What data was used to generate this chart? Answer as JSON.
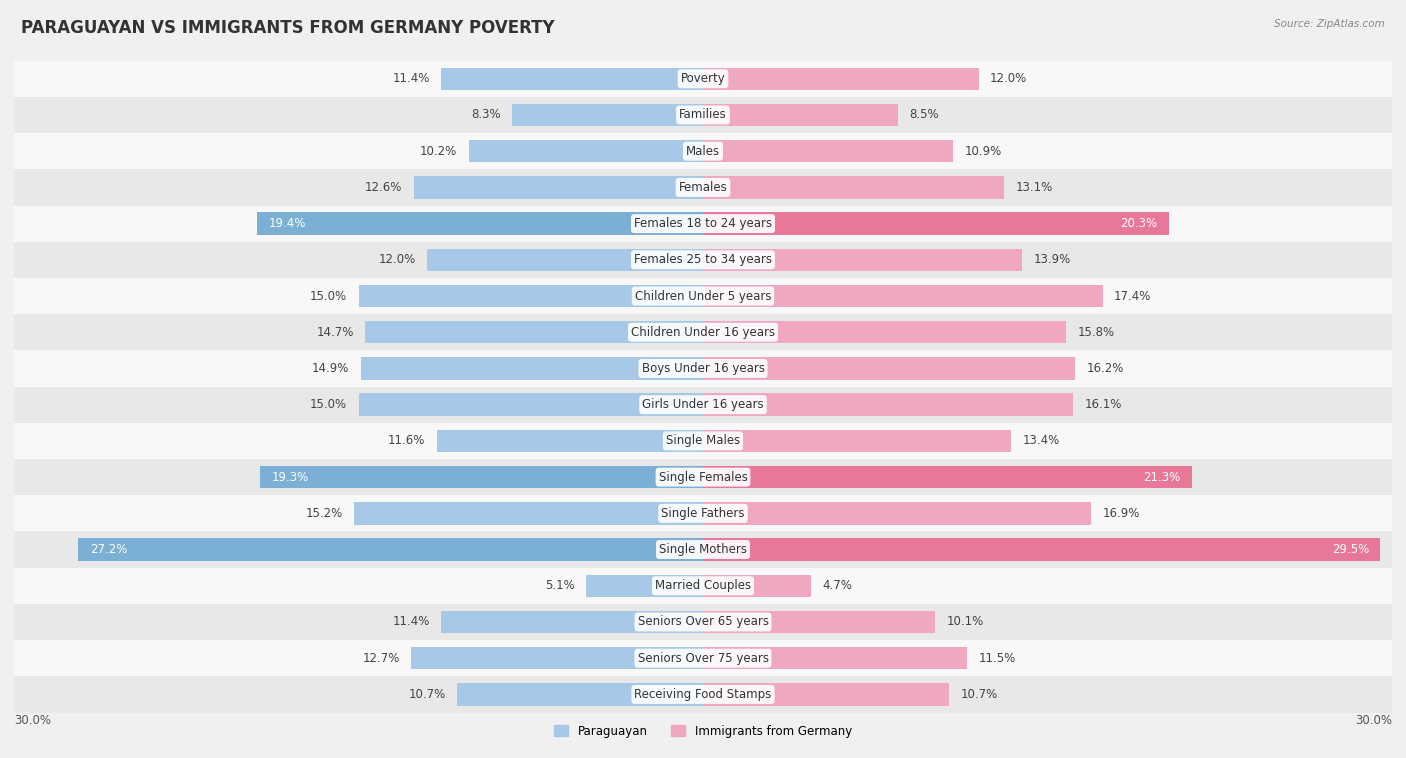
{
  "title": "PARAGUAYAN VS IMMIGRANTS FROM GERMANY POVERTY",
  "source": "Source: ZipAtlas.com",
  "categories": [
    "Poverty",
    "Families",
    "Males",
    "Females",
    "Females 18 to 24 years",
    "Females 25 to 34 years",
    "Children Under 5 years",
    "Children Under 16 years",
    "Boys Under 16 years",
    "Girls Under 16 years",
    "Single Males",
    "Single Females",
    "Single Fathers",
    "Single Mothers",
    "Married Couples",
    "Seniors Over 65 years",
    "Seniors Over 75 years",
    "Receiving Food Stamps"
  ],
  "paraguayan": [
    11.4,
    8.3,
    10.2,
    12.6,
    19.4,
    12.0,
    15.0,
    14.7,
    14.9,
    15.0,
    11.6,
    19.3,
    15.2,
    27.2,
    5.1,
    11.4,
    12.7,
    10.7
  ],
  "immigrants": [
    12.0,
    8.5,
    10.9,
    13.1,
    20.3,
    13.9,
    17.4,
    15.8,
    16.2,
    16.1,
    13.4,
    21.3,
    16.9,
    29.5,
    4.7,
    10.1,
    11.5,
    10.7
  ],
  "paraguayan_color_normal": "#a8c8e8",
  "paraguayan_color_highlight": "#7bafd4",
  "immigrants_color_normal": "#f0a8be",
  "immigrants_color_highlight": "#e87898",
  "highlight_rows": [
    4,
    11,
    13
  ],
  "bar_height": 0.62,
  "max_val": 30.0,
  "background_color": "#f0f0f0",
  "row_bg_light": "#f8f8f8",
  "row_bg_dark": "#e8e8e8",
  "title_fontsize": 12,
  "label_fontsize": 8.5,
  "value_fontsize": 8.5,
  "legend_label_paraguayan": "Paraguayan",
  "legend_label_immigrants": "Immigrants from Germany"
}
